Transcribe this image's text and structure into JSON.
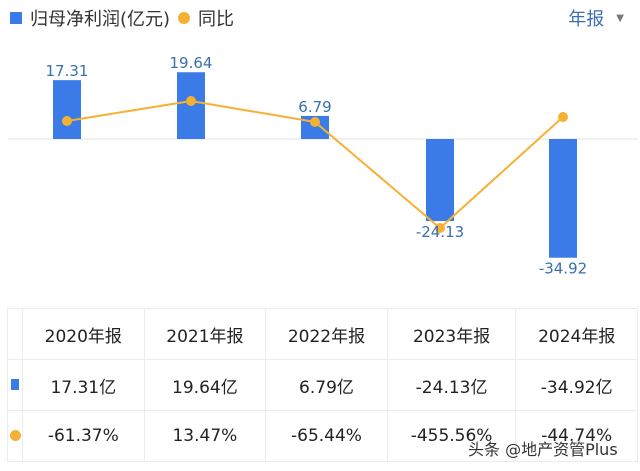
{
  "legend": {
    "series_bar_label": "归母净利润(亿元)",
    "series_line_label": "同比"
  },
  "period_selector": {
    "label": "年报",
    "caret": "▼"
  },
  "colors": {
    "bar": "#3a7be8",
    "line": "#f5b133",
    "label": "#3a6fb0",
    "negative": "#2a9d72",
    "positive": "#d9534f"
  },
  "chart_data": {
    "type": "bar",
    "title": "",
    "categories": [
      "2020年报",
      "2021年报",
      "2022年报",
      "2023年报",
      "2024年报"
    ],
    "series": [
      {
        "name": "归母净利润(亿元)",
        "type": "bar",
        "values": [
          17.31,
          19.64,
          6.79,
          -24.13,
          -34.92
        ]
      },
      {
        "name": "同比",
        "type": "line",
        "values": [
          -61.37,
          13.47,
          -65.44,
          -455.56,
          -44.74
        ],
        "unit": "%"
      }
    ],
    "xlabel": "",
    "ylabel": "",
    "grid": false,
    "legend_position": "top-left"
  },
  "bar_labels": [
    "17.31",
    "19.64",
    "6.79",
    "-24.13",
    "-34.92"
  ],
  "table": {
    "headers": [
      "2020年报",
      "2021年报",
      "2022年报",
      "2023年报",
      "2024年报"
    ],
    "profit_row": [
      "17.31亿",
      "19.64亿",
      "6.79亿",
      "-24.13亿",
      "-34.92亿"
    ],
    "yoy_row": [
      "-61.37%",
      "13.47%",
      "-65.44%",
      "-455.56%",
      "-44.74%"
    ]
  },
  "watermark": "头条 @地产资管Plus"
}
